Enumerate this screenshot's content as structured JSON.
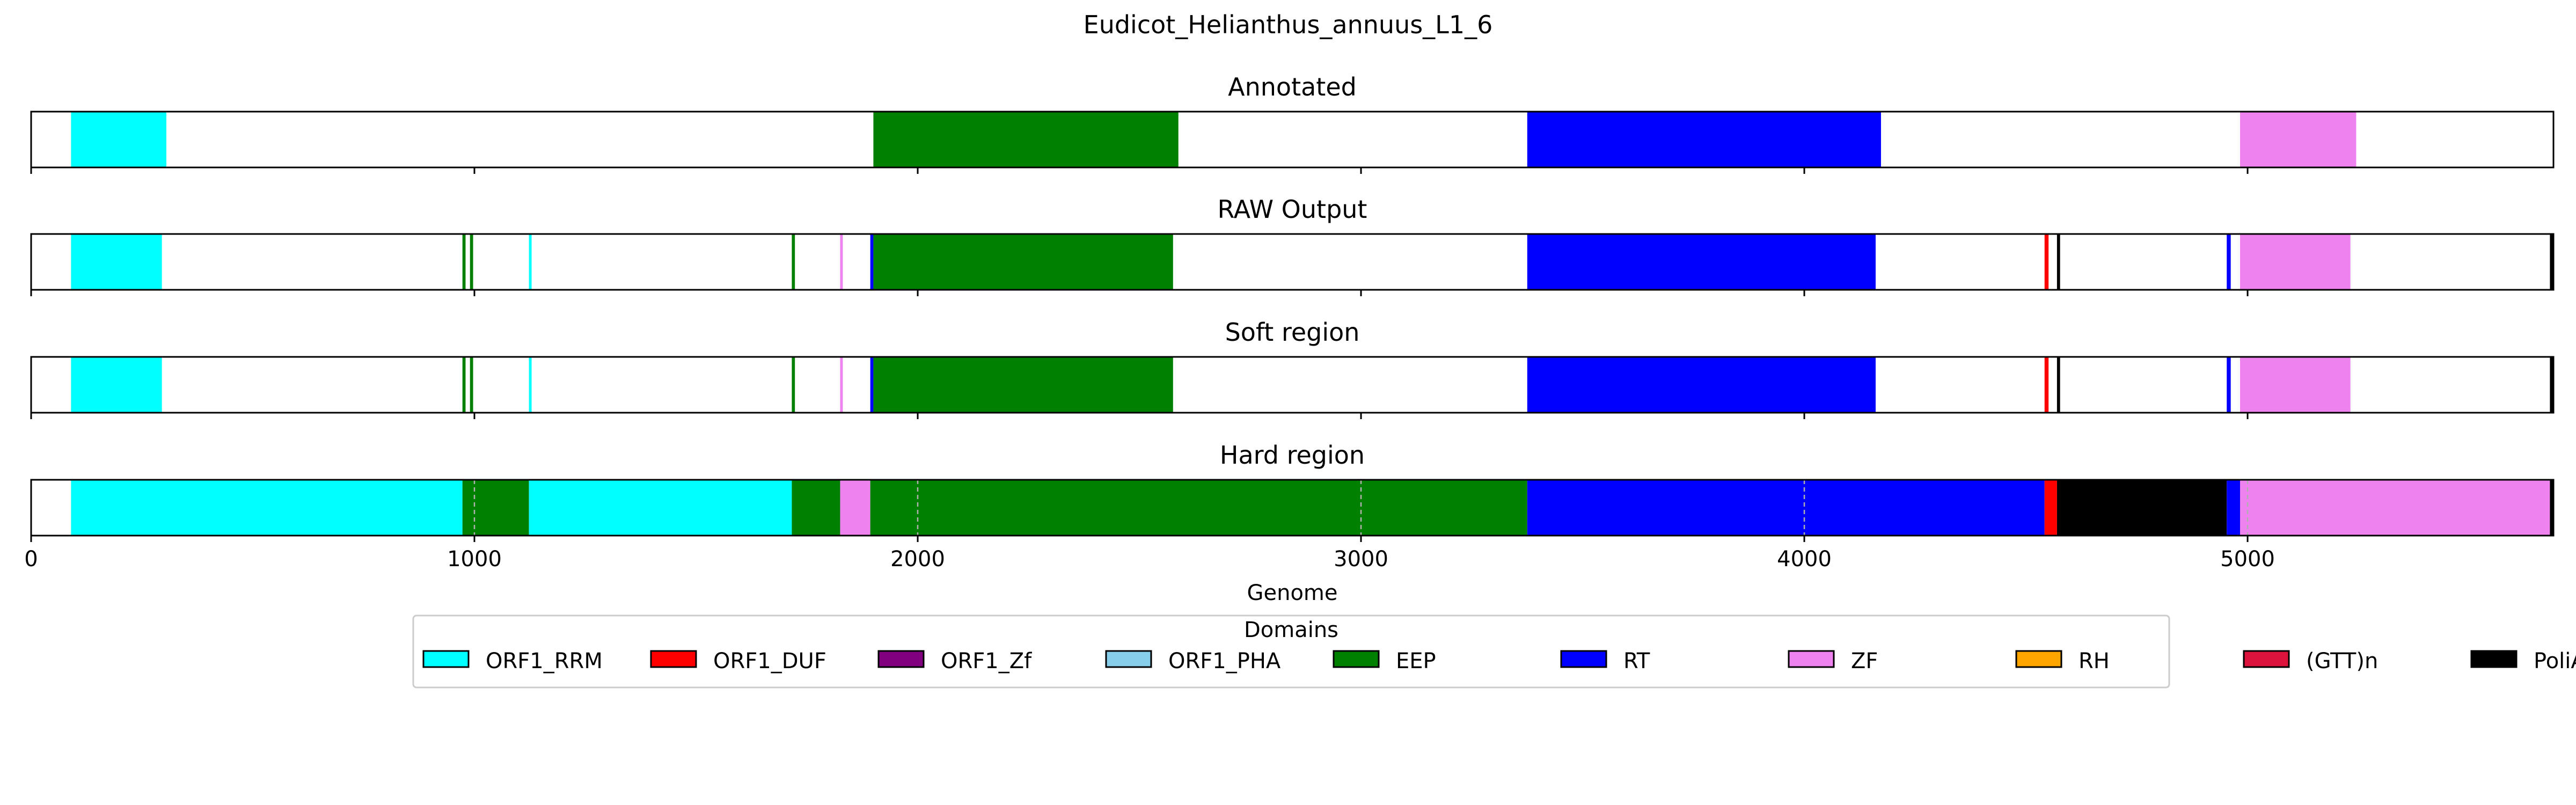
{
  "figure_title": "Eudicot_Helianthus_annuus_L1_6",
  "chart_data": {
    "type": "bar",
    "title": "Eudicot_Helianthus_annuus_L1_6",
    "xlabel": "Genome",
    "xlim": [
      0,
      5690
    ],
    "xticks": [
      0,
      1000,
      2000,
      3000,
      4000,
      5000
    ],
    "xtick_labels": [
      "0",
      "1000",
      "2000",
      "3000",
      "4000",
      "5000"
    ],
    "grid": "vertical dashed gridlines on Hard region panel",
    "tracks": [
      {
        "title": "Annotated",
        "segments": [
          {
            "domain": "ORF1_RRM",
            "start": 90,
            "end": 305
          },
          {
            "domain": "EEP",
            "start": 1900,
            "end": 2588
          },
          {
            "domain": "RT",
            "start": 3375,
            "end": 4173
          },
          {
            "domain": "ZF",
            "start": 4983,
            "end": 5245
          }
        ]
      },
      {
        "title": "RAW Output",
        "segments": [
          {
            "domain": "ORF1_RRM",
            "start": 90,
            "end": 295
          },
          {
            "domain": "EEP",
            "start": 973,
            "end": 980
          },
          {
            "domain": "EEP",
            "start": 990,
            "end": 997
          },
          {
            "domain": "ORF1_RRM",
            "start": 1123,
            "end": 1129
          },
          {
            "domain": "EEP",
            "start": 1716,
            "end": 1723
          },
          {
            "domain": "ZF",
            "start": 1825,
            "end": 1831
          },
          {
            "domain": "RT",
            "start": 1893,
            "end": 1900
          },
          {
            "domain": "EEP",
            "start": 1900,
            "end": 2576
          },
          {
            "domain": "RT",
            "start": 3375,
            "end": 4161
          },
          {
            "domain": "ORF1_DUF",
            "start": 4542,
            "end": 4551
          },
          {
            "domain": "PoliA",
            "start": 4570,
            "end": 4577
          },
          {
            "domain": "RT",
            "start": 4953,
            "end": 4962
          },
          {
            "domain": "ZF",
            "start": 4983,
            "end": 5232
          },
          {
            "domain": "PoliA",
            "start": 5682,
            "end": 5690
          }
        ]
      },
      {
        "title": "Soft region",
        "segments": [
          {
            "domain": "ORF1_RRM",
            "start": 90,
            "end": 295
          },
          {
            "domain": "EEP",
            "start": 973,
            "end": 980
          },
          {
            "domain": "EEP",
            "start": 990,
            "end": 997
          },
          {
            "domain": "ORF1_RRM",
            "start": 1123,
            "end": 1129
          },
          {
            "domain": "EEP",
            "start": 1716,
            "end": 1723
          },
          {
            "domain": "ZF",
            "start": 1825,
            "end": 1831
          },
          {
            "domain": "RT",
            "start": 1893,
            "end": 1900
          },
          {
            "domain": "EEP",
            "start": 1900,
            "end": 2576
          },
          {
            "domain": "RT",
            "start": 3375,
            "end": 4161
          },
          {
            "domain": "ORF1_DUF",
            "start": 4542,
            "end": 4551
          },
          {
            "domain": "PoliA",
            "start": 4570,
            "end": 4577
          },
          {
            "domain": "RT",
            "start": 4953,
            "end": 4962
          },
          {
            "domain": "ZF",
            "start": 4983,
            "end": 5232
          },
          {
            "domain": "PoliA",
            "start": 5682,
            "end": 5690
          }
        ]
      },
      {
        "title": "Hard region",
        "segments": [
          {
            "domain": "ORF1_RRM",
            "start": 90,
            "end": 973
          },
          {
            "domain": "EEP",
            "start": 973,
            "end": 1123
          },
          {
            "domain": "ORF1_RRM",
            "start": 1123,
            "end": 1716
          },
          {
            "domain": "EEP",
            "start": 1716,
            "end": 1825
          },
          {
            "domain": "ZF",
            "start": 1825,
            "end": 1893
          },
          {
            "domain": "EEP",
            "start": 1893,
            "end": 3375
          },
          {
            "domain": "RT",
            "start": 3375,
            "end": 4542
          },
          {
            "domain": "ORF1_DUF",
            "start": 4542,
            "end": 4570
          },
          {
            "domain": "PoliA",
            "start": 4570,
            "end": 4953
          },
          {
            "domain": "RT",
            "start": 4953,
            "end": 4983
          },
          {
            "domain": "ZF",
            "start": 4983,
            "end": 5682
          },
          {
            "domain": "PoliA",
            "start": 5682,
            "end": 5690
          }
        ]
      }
    ],
    "legend": {
      "title": "Domains",
      "placement": "bottom-center",
      "entries": [
        {
          "label": "ORF1_RRM",
          "color": "#00FFFF"
        },
        {
          "label": "ORF1_DUF",
          "color": "#FF0000"
        },
        {
          "label": "ORF1_Zf",
          "color": "#800080"
        },
        {
          "label": "ORF1_PHA",
          "color": "#87CEEB"
        },
        {
          "label": "EEP",
          "color": "#008000"
        },
        {
          "label": "RT",
          "color": "#0000FF"
        },
        {
          "label": "ZF",
          "color": "#EE82EE"
        },
        {
          "label": "RH",
          "color": "#FFA500"
        },
        {
          "label": "(GTT)n",
          "color": "#DC143C"
        },
        {
          "label": "PoliA",
          "color": "#000000"
        }
      ]
    }
  }
}
